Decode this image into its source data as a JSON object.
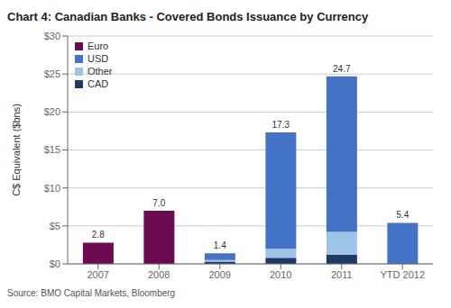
{
  "chart_data": {
    "type": "bar",
    "title": "Chart 4: Canadian Banks - Covered Bonds Issuance by Currency",
    "ylabel": "C$ Equivalent ($bns)",
    "annotations": [
      "Source: BMO Capital Markets, Bloomberg"
    ],
    "categories": [
      "2007",
      "2008",
      "2009",
      "2010",
      "2011",
      "YTD 2012"
    ],
    "series": [
      {
        "name": "CAD",
        "color": "#1f3864",
        "values": [
          0.0,
          0.0,
          0.3,
          0.8,
          1.2,
          0.0
        ]
      },
      {
        "name": "Other",
        "color": "#9dc3e6",
        "values": [
          0.0,
          0.0,
          0.2,
          1.2,
          3.0,
          0.0
        ]
      },
      {
        "name": "USD",
        "color": "#4472c4",
        "values": [
          0.0,
          0.0,
          0.9,
          15.3,
          20.5,
          5.4
        ]
      },
      {
        "name": "Euro",
        "color": "#6b0a52",
        "values": [
          2.8,
          7.0,
          0.0,
          0.0,
          0.0,
          0.0
        ]
      }
    ],
    "totals": {
      "values": [
        2.8,
        7.0,
        1.4,
        17.3,
        24.7,
        5.4
      ],
      "value_labels": [
        "2.8",
        "7.0",
        "1.4",
        "17.3",
        "24.7",
        "5.4"
      ]
    },
    "stacked": true,
    "ylim": [
      0,
      30
    ],
    "yticks": [
      {
        "value": 0,
        "label": "$0"
      },
      {
        "value": 5,
        "label": "$5"
      },
      {
        "value": 10,
        "label": "$10"
      },
      {
        "value": 15,
        "label": "$15"
      },
      {
        "value": 20,
        "label": "$20"
      },
      {
        "value": 25,
        "label": "$25"
      },
      {
        "value": 30,
        "label": "$30"
      }
    ],
    "grid": true,
    "legend": "upper left"
  }
}
